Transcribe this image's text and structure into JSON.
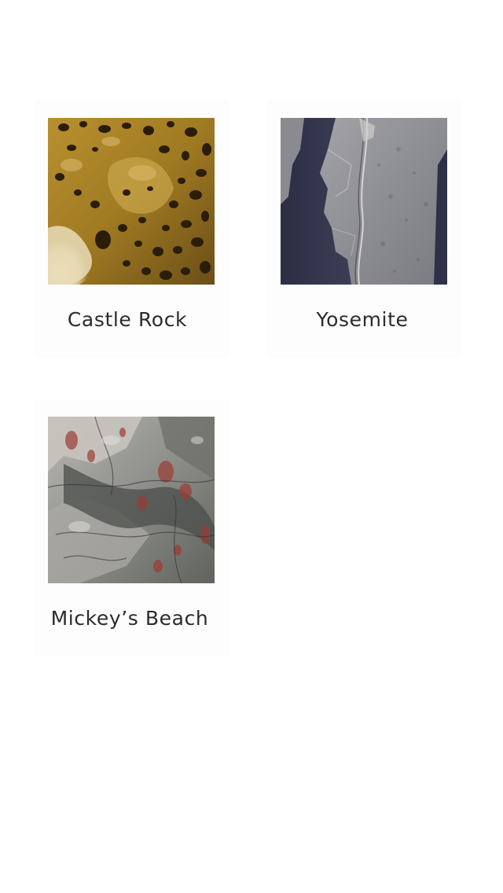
{
  "locations": [
    {
      "name": "Castle Rock",
      "thumbnail": "castle-rock-sandstone-texture",
      "colors": {
        "base": "#c8a24a",
        "dark": "#3a2a12",
        "light": "#e6d3a6"
      }
    },
    {
      "name": "Yosemite",
      "thumbnail": "yosemite-granite-texture",
      "colors": {
        "base": "#7f8088",
        "dark": "#2a2c40",
        "light": "#b4b3b2"
      }
    },
    {
      "name": "Mickey’s Beach",
      "thumbnail": "mickeys-beach-rock-texture",
      "colors": {
        "base": "#9a9a94",
        "dark": "#3a3c38",
        "accent": "#9a3a34"
      }
    }
  ]
}
